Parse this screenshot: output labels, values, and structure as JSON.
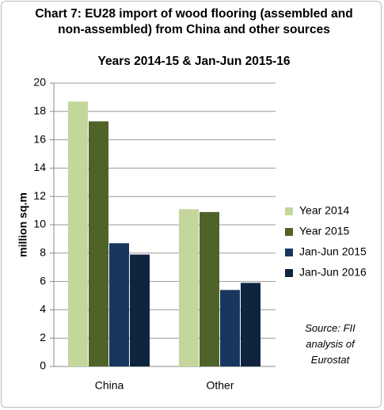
{
  "chart_data": {
    "type": "bar",
    "title": "Chart 7: EU28 import of wood flooring (assembled and non-assembled) from China and other sources",
    "subtitle": "Years 2014-15 & Jan-Jun 2015-16",
    "y_label": "million sq.m",
    "annotation": "Source: FII analysis of Eurostat",
    "categories": [
      "China",
      "Other"
    ],
    "series": [
      {
        "name": "Year 2014",
        "color": "#c3d69b",
        "values": [
          18.7,
          11.1
        ]
      },
      {
        "name": "Year 2015",
        "color": "#4f6228",
        "values": [
          17.3,
          10.9
        ]
      },
      {
        "name": "Jan-Jun 2015",
        "color": "#17375e",
        "values": [
          8.7,
          5.4
        ]
      },
      {
        "name": "Jan-Jun 2016",
        "color": "#0f243e",
        "values": [
          7.9,
          5.9
        ]
      }
    ],
    "ylim": [
      0,
      20
    ],
    "yticks": [
      0,
      2,
      4,
      6,
      8,
      10,
      12,
      14,
      16,
      18,
      20
    ],
    "grid": true,
    "legend": "right"
  }
}
